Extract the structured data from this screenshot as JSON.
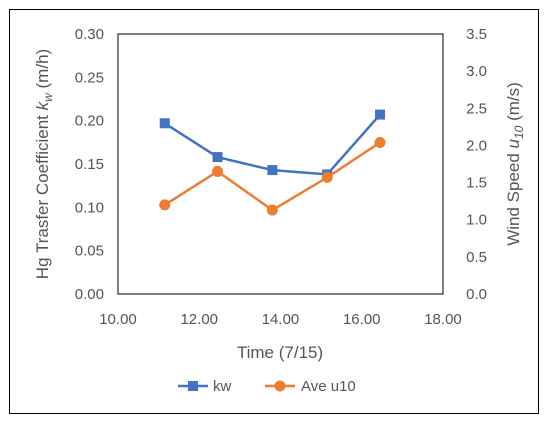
{
  "chart_data": {
    "type": "line",
    "x": [
      11.15,
      12.45,
      13.8,
      15.15,
      16.45
    ],
    "xlabel": "Time (7/15)",
    "xlim": [
      10.0,
      18.0
    ],
    "xticks": [
      "10.00",
      "12.00",
      "14.00",
      "16.00",
      "18.00"
    ],
    "ylabel_left_prefix": "Hg Trasfer Coefficient ",
    "ylabel_left_symbol": "k",
    "ylabel_left_sub": "w",
    "ylabel_left_suffix": " (m/h)",
    "ylim_left": [
      0.0,
      0.3
    ],
    "yticks_left": [
      "0.00",
      "0.05",
      "0.10",
      "0.15",
      "0.20",
      "0.25",
      "0.30"
    ],
    "ylabel_right_prefix": "Wind Speed ",
    "ylabel_right_symbol": "u",
    "ylabel_right_sub": "10",
    "ylabel_right_suffix": " (m/s)",
    "ylim_right": [
      0.0,
      3.5
    ],
    "yticks_right": [
      "0.0",
      "0.5",
      "1.0",
      "1.5",
      "2.0",
      "2.5",
      "3.0",
      "3.5"
    ],
    "grid": false,
    "legend_position": "bottom",
    "series": [
      {
        "name": "kw",
        "axis": "left",
        "color": "#4472C4",
        "marker": "square",
        "values": [
          0.197,
          0.158,
          0.143,
          0.138,
          0.207
        ]
      },
      {
        "name": "Ave u10",
        "axis": "right",
        "color": "#ED7D31",
        "marker": "circle",
        "values": [
          1.2,
          1.65,
          1.13,
          1.57,
          2.04
        ]
      }
    ]
  }
}
